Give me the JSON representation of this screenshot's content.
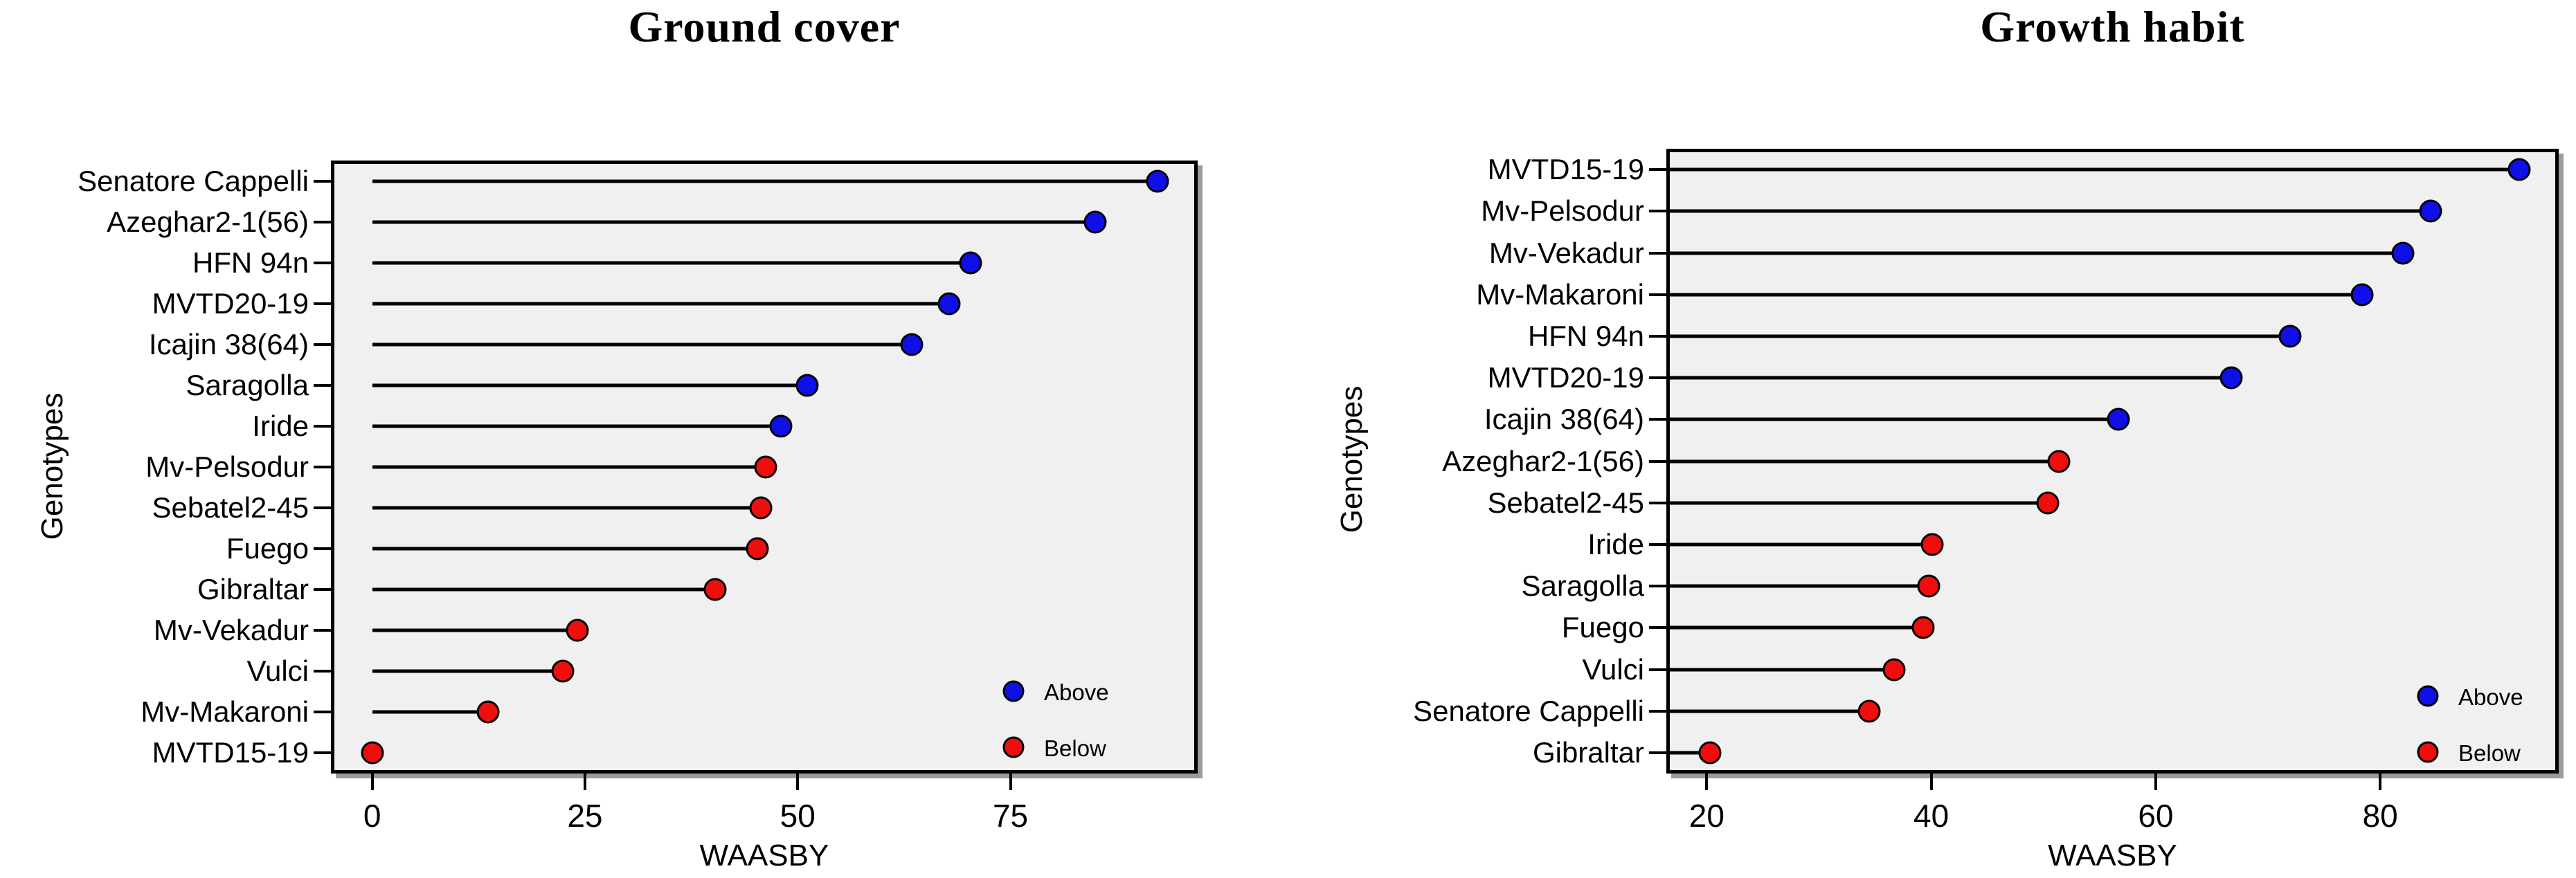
{
  "figure": {
    "background": "#ffffff",
    "panel_background": "#f0f0f0",
    "text_color": "#000000",
    "stem_color": "#000000",
    "above_color": "#0f0fe8",
    "below_color": "#ee0e0e"
  },
  "chart_data": [
    {
      "type": "lollipop",
      "title": "Ground cover",
      "xlabel": "WAASBY",
      "ylabel": "Genotypes",
      "xlim": [
        -4.85,
        97
      ],
      "xticks": [
        0,
        25,
        50,
        75
      ],
      "stem_origin": 0,
      "grid": false,
      "legend_position": "bottom-right",
      "legend": [
        {
          "label": "Above",
          "color": "#0f0fe8"
        },
        {
          "label": "Below",
          "color": "#ee0e0e"
        }
      ],
      "points": [
        {
          "genotype": "Senatore Cappelli",
          "waasby": 92.3,
          "group": "Above"
        },
        {
          "genotype": "Azeghar2-1(56)",
          "waasby": 85.0,
          "group": "Above"
        },
        {
          "genotype": "HFN 94n",
          "waasby": 70.3,
          "group": "Above"
        },
        {
          "genotype": "MVTD20-19",
          "waasby": 67.8,
          "group": "Above"
        },
        {
          "genotype": "Icajin 38(64)",
          "waasby": 63.4,
          "group": "Above"
        },
        {
          "genotype": "Saragolla",
          "waasby": 51.1,
          "group": "Above"
        },
        {
          "genotype": "Iride",
          "waasby": 48.0,
          "group": "Above"
        },
        {
          "genotype": "Mv-Pelsodur",
          "waasby": 46.2,
          "group": "Below"
        },
        {
          "genotype": "Sebatel2-45",
          "waasby": 45.7,
          "group": "Below"
        },
        {
          "genotype": "Fuego",
          "waasby": 45.3,
          "group": "Below"
        },
        {
          "genotype": "Gibraltar",
          "waasby": 40.3,
          "group": "Below"
        },
        {
          "genotype": "Mv-Vekadur",
          "waasby": 24.1,
          "group": "Below"
        },
        {
          "genotype": "Vulci",
          "waasby": 22.4,
          "group": "Below"
        },
        {
          "genotype": "Mv-Makaroni",
          "waasby": 13.6,
          "group": "Below"
        },
        {
          "genotype": "MVTD15-19",
          "waasby": 0.0,
          "group": "Below"
        }
      ]
    },
    {
      "type": "lollipop",
      "title": "Growth habit",
      "xlabel": "WAASBY",
      "ylabel": "Genotypes",
      "xlim": [
        16.4,
        95.9
      ],
      "xticks": [
        20,
        40,
        60,
        80
      ],
      "stem_origin": null,
      "grid": false,
      "legend_position": "bottom-right",
      "legend": [
        {
          "label": "Above",
          "color": "#0f0fe8"
        },
        {
          "label": "Below",
          "color": "#ee0e0e"
        }
      ],
      "points": [
        {
          "genotype": "MVTD15-19",
          "waasby": 92.4,
          "group": "Above"
        },
        {
          "genotype": "Mv-Pelsodur",
          "waasby": 84.5,
          "group": "Above"
        },
        {
          "genotype": "Mv-Vekadur",
          "waasby": 82.0,
          "group": "Above"
        },
        {
          "genotype": "Mv-Makaroni",
          "waasby": 78.4,
          "group": "Above"
        },
        {
          "genotype": "HFN 94n",
          "waasby": 72.0,
          "group": "Above"
        },
        {
          "genotype": "MVTD20-19",
          "waasby": 66.7,
          "group": "Above"
        },
        {
          "genotype": "Icajin 38(64)",
          "waasby": 56.7,
          "group": "Above"
        },
        {
          "genotype": "Azeghar2-1(56)",
          "waasby": 51.4,
          "group": "Below"
        },
        {
          "genotype": "Sebatel2-45",
          "waasby": 50.4,
          "group": "Below"
        },
        {
          "genotype": "Iride",
          "waasby": 40.1,
          "group": "Below"
        },
        {
          "genotype": "Saragolla",
          "waasby": 39.8,
          "group": "Below"
        },
        {
          "genotype": "Fuego",
          "waasby": 39.3,
          "group": "Below"
        },
        {
          "genotype": "Vulci",
          "waasby": 36.7,
          "group": "Below"
        },
        {
          "genotype": "Senatore Cappelli",
          "waasby": 34.5,
          "group": "Below"
        },
        {
          "genotype": "Gibraltar",
          "waasby": 20.3,
          "group": "Below"
        }
      ]
    }
  ]
}
